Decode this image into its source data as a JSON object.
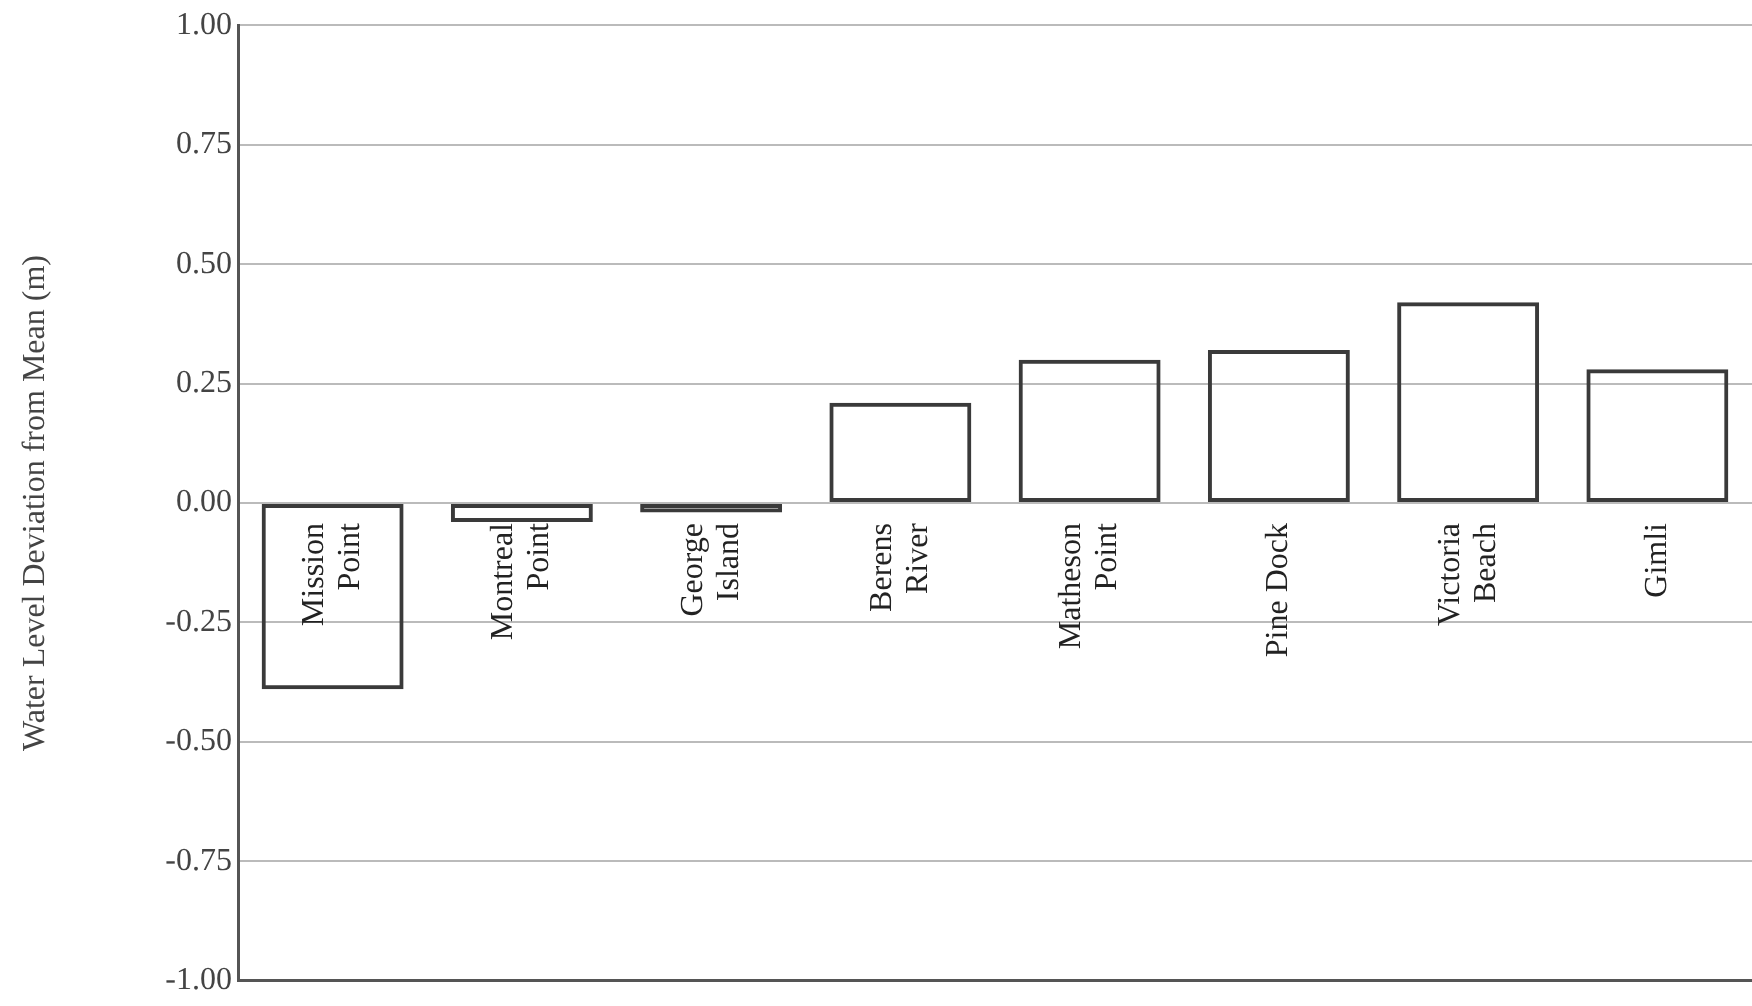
{
  "chart_data": {
    "type": "bar",
    "ylabel": "Water Level Deviation from Mean (m)",
    "categories": [
      "Mission Point",
      "Montreal Point",
      "George Island",
      "Berens River",
      "Matheson Point",
      "Pine Dock",
      "Victoria Beach",
      "Gimli"
    ],
    "values": [
      -0.39,
      -0.04,
      -0.02,
      0.21,
      0.3,
      0.32,
      0.42,
      0.28
    ],
    "color": "#3a3a3a",
    "ylim": [
      -1,
      1
    ],
    "yticks": [
      {
        "value": -1,
        "label": "-1.00"
      },
      {
        "value": -0.75,
        "label": "-0.75"
      },
      {
        "value": -0.5,
        "label": "-0.50"
      },
      {
        "value": -0.25,
        "label": "-0.25"
      },
      {
        "value": 0,
        "label": "0.00"
      },
      {
        "value": 0.25,
        "label": "0.25"
      },
      {
        "value": 0.5,
        "label": "0.50"
      },
      {
        "value": 0.75,
        "label": "0.75"
      },
      {
        "value": 1,
        "label": "1.00"
      }
    ],
    "grid": "y"
  }
}
